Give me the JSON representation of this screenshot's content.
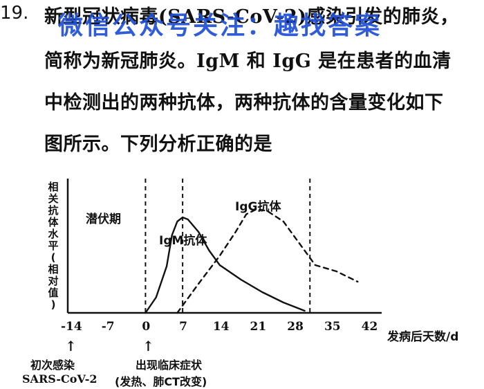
{
  "question": {
    "number": "19.",
    "lines": [
      "新型冠状病毒(SARS-CoV-2)感染引发的肺炎，",
      "简称为新冠肺炎。IgM 和 IgG 是在患者的血清",
      "中检测出的两种抗体，两种抗体的含量变化如下",
      "图所示。下列分析正确的是"
    ]
  },
  "watermark": "微信公众号关注：趣找答案",
  "figure": {
    "ylabel": "相关抗体水平(相对值)",
    "xlabel": "发病后天数/d",
    "latent_label": "潜伏期",
    "igm_label": "IgM抗体",
    "igg_label": "IgG抗体",
    "ticks": [
      "-14",
      "-7",
      "0",
      "7",
      "14",
      "21",
      "28",
      "35",
      "42"
    ],
    "ann_infection_1": "初次感染",
    "ann_infection_2": "SARS-CoV-2",
    "ann_symptom_1": "出现临床症状",
    "ann_symptom_2": "(发热、肺CT改变)"
  },
  "chart_data": {
    "type": "line",
    "xlabel": "发病后天数/d",
    "ylabel": "相关抗体水平(相对值)",
    "x_ticks": [
      -14,
      -7,
      0,
      7,
      14,
      21,
      28,
      35,
      42
    ],
    "series": [
      {
        "name": "IgM抗体",
        "style": "solid",
        "x": [
          0,
          2,
          4,
          5,
          6,
          7,
          8,
          10,
          12,
          14,
          18,
          22,
          26,
          30
        ],
        "y": [
          0.0,
          0.15,
          0.45,
          0.75,
          0.88,
          0.92,
          0.9,
          0.78,
          0.6,
          0.46,
          0.32,
          0.2,
          0.1,
          0.02
        ]
      },
      {
        "name": "IgG抗体",
        "style": "dashed",
        "x": [
          6,
          10,
          14,
          17,
          19,
          21,
          23,
          26,
          28,
          30,
          32,
          36,
          40
        ],
        "y": [
          0.0,
          0.28,
          0.55,
          0.78,
          0.95,
          1.0,
          0.98,
          0.88,
          0.74,
          0.6,
          0.46,
          0.4,
          0.3
        ]
      }
    ],
    "vlines_dashed": [
      0,
      7,
      31
    ],
    "colors": {
      "line": "#111111",
      "watermark": "#1f4fd6"
    }
  }
}
